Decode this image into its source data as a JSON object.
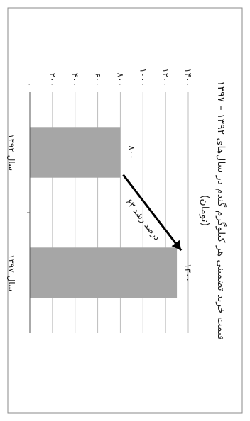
{
  "chart_data": {
    "type": "bar",
    "orientation": "rotated-90",
    "title_line1": "قیمت خرید تضمینی هر کیلوگرم گندم در سال‌های ۱۳۹۲ – ۱۳۹۷",
    "title_line2": "(تومان)",
    "categories": [
      "سال ۱۳۹۲",
      "سال ۱۳۹۷"
    ],
    "values": [
      800,
      1300
    ],
    "value_labels": [
      "۸۰۰",
      "۱۳۰۰"
    ],
    "y_ticks": [
      0,
      200,
      400,
      600,
      800,
      1000,
      1200,
      1400
    ],
    "y_tick_labels": [
      "۰",
      "۲۰۰",
      "۴۰۰",
      "۶۰۰",
      "۸۰۰",
      "۱۰۰۰",
      "۱۲۰۰",
      "۱۴۰۰"
    ],
    "ylim": [
      0,
      1400
    ],
    "grid": true,
    "annotation": {
      "text": "۶۳ درصد رشد",
      "arrow": true
    },
    "colors": {
      "bar": "#a6a6a6",
      "grid": "#bdbdbd",
      "border": "#8a8a8a",
      "arrow": "#000000"
    }
  }
}
